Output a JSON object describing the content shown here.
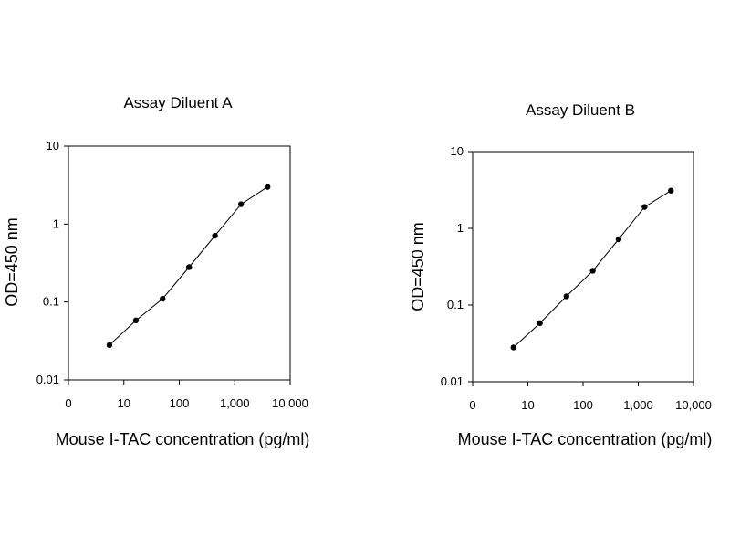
{
  "chart_data": [
    {
      "type": "line",
      "title": "Assay Diluent A",
      "xlabel": "Mouse I-TAC concentration (pg/ml)",
      "ylabel": "OD=450 nm",
      "xscale": "log",
      "yscale": "log",
      "xlim": [
        1,
        10000
      ],
      "ylim": [
        0.01,
        10
      ],
      "x_tick_labels": [
        "0",
        "10",
        "100",
        "1,000",
        "10,000"
      ],
      "y_tick_labels": [
        "0.01",
        "0.1",
        "1",
        "10"
      ],
      "grid": false,
      "series": [
        {
          "x": [
            5.5,
            16.5,
            50,
            150,
            440,
            1300,
            3900
          ],
          "y": [
            0.028,
            0.058,
            0.11,
            0.28,
            0.71,
            1.8,
            3.0
          ]
        }
      ]
    },
    {
      "type": "line",
      "title": "Assay Diluent B",
      "xlabel": "Mouse I-TAC concentration (pg/ml)",
      "ylabel": "OD=450 nm",
      "xscale": "log",
      "yscale": "log",
      "xlim": [
        1,
        10000
      ],
      "ylim": [
        0.01,
        10
      ],
      "x_tick_labels": [
        "0",
        "10",
        "100",
        "1,000",
        "10,000"
      ],
      "y_tick_labels": [
        "0.01",
        "0.1",
        "1",
        "10"
      ],
      "grid": false,
      "series": [
        {
          "x": [
            5.5,
            16.5,
            50,
            150,
            440,
            1300,
            3900
          ],
          "y": [
            0.028,
            0.058,
            0.13,
            0.28,
            0.72,
            1.9,
            3.1
          ]
        }
      ]
    }
  ]
}
